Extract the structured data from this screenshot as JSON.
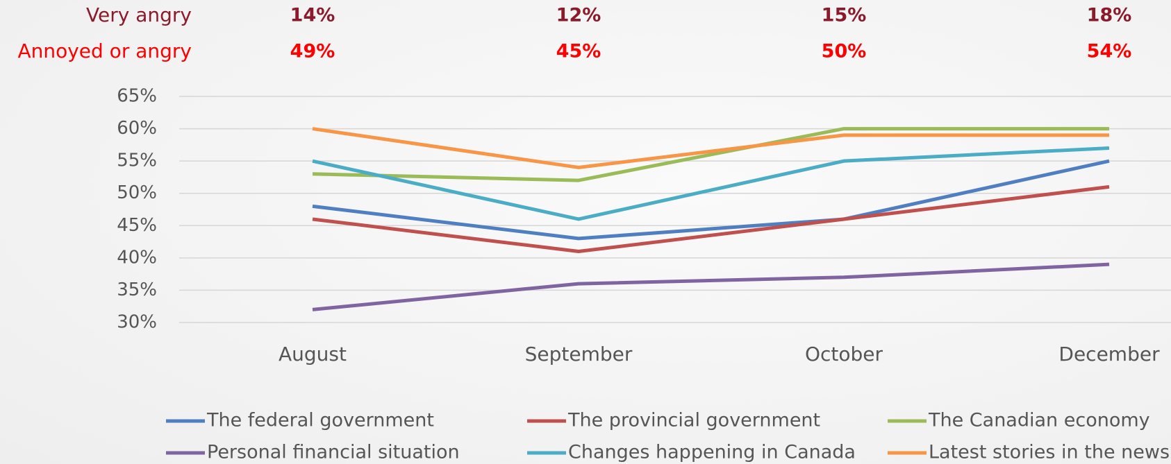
{
  "chart_data": {
    "type": "line",
    "summary_rows": [
      {
        "label": "Very angry",
        "color": "#8b1a2b",
        "values": [
          14,
          12,
          15,
          18
        ],
        "value_labels": [
          "14%",
          "12%",
          "15%",
          "18%"
        ]
      },
      {
        "label": "Annoyed or angry",
        "color": "#ff0000",
        "values": [
          49,
          45,
          50,
          54
        ],
        "value_labels": [
          "49%",
          "45%",
          "50%",
          "54%"
        ]
      }
    ],
    "categories": [
      "August",
      "September",
      "October",
      "December"
    ],
    "series": [
      {
        "name": "The federal government",
        "color": "#4f7fc0",
        "values": [
          48,
          43,
          46,
          55
        ]
      },
      {
        "name": "The provincial government",
        "color": "#c0504d",
        "values": [
          46,
          41,
          46,
          51
        ]
      },
      {
        "name": "The Canadian economy",
        "color": "#9bbb59",
        "values": [
          53,
          52,
          60,
          60
        ]
      },
      {
        "name": "Personal financial situation",
        "color": "#8064a2",
        "values": [
          32,
          36,
          37,
          39
        ]
      },
      {
        "name": "Changes happening in Canada",
        "color": "#4bacc6",
        "values": [
          55,
          46,
          55,
          57
        ]
      },
      {
        "name": "Latest stories in the news",
        "color": "#f79646",
        "values": [
          60,
          54,
          59,
          59
        ]
      }
    ],
    "ylim": [
      30,
      65
    ],
    "yticks": [
      {
        "value": 30,
        "label": "30%"
      },
      {
        "value": 35,
        "label": "35%"
      },
      {
        "value": 40,
        "label": "40%"
      },
      {
        "value": 45,
        "label": "45%"
      },
      {
        "value": 50,
        "label": "50%"
      },
      {
        "value": 55,
        "label": "55%"
      },
      {
        "value": 60,
        "label": "60%"
      },
      {
        "value": 65,
        "label": "65%"
      }
    ],
    "grid": true
  }
}
